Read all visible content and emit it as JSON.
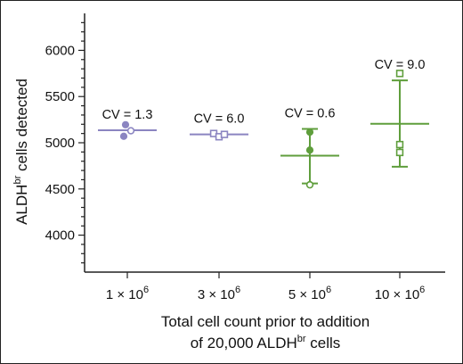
{
  "chart_data": {
    "type": "scatter",
    "title": "",
    "xlabel_line1": "Total cell count prior to addition",
    "xlabel_line2_pre": "of 20,000 ALDH",
    "xlabel_line2_sup": "br",
    "xlabel_line2_post": " cells",
    "ylabel_pre": "ALDH",
    "ylabel_sup": "br",
    "ylabel_post": " cells detected",
    "ylim": [
      3600,
      6400
    ],
    "yticks": [
      4000,
      4500,
      5000,
      5500,
      6000
    ],
    "ytick_labels": [
      "4000",
      "4500",
      "5000",
      "5500",
      "6000"
    ],
    "grid": false,
    "categories": [
      {
        "base": "1 × 10",
        "exp": "6"
      },
      {
        "base": "3 × 10",
        "exp": "6"
      },
      {
        "base": "5 × 10",
        "exp": "6"
      },
      {
        "base": "10 × 10",
        "exp": "6"
      }
    ],
    "groups": [
      {
        "cv_label": "CV = 1.3",
        "color": "#8b85c1",
        "mean": 5135,
        "sd_low": 5135,
        "sd_high": 5135,
        "points": [
          {
            "y": 5195,
            "marker": "circle",
            "dx": -2
          },
          {
            "y": 5070,
            "marker": "circle",
            "dx": -4
          },
          {
            "y": 5130,
            "marker": "circle-open",
            "dx": 4
          }
        ]
      },
      {
        "cv_label": "CV = 6.0",
        "color": "#8b85c1",
        "mean": 5090,
        "sd_low": 5090,
        "sd_high": 5090,
        "points": [
          {
            "y": 5100,
            "marker": "square-open",
            "dx": -6
          },
          {
            "y": 5065,
            "marker": "square-open",
            "dx": 0
          },
          {
            "y": 5090,
            "marker": "square-open",
            "dx": 6
          }
        ]
      },
      {
        "cv_label": "CV = 0.6",
        "color": "#5f9e3c",
        "mean": 4860,
        "sd_low": 4560,
        "sd_high": 5150,
        "points": [
          {
            "y": 5115,
            "marker": "circle",
            "dx": 0
          },
          {
            "y": 4920,
            "marker": "circle",
            "dx": 0
          },
          {
            "y": 4545,
            "marker": "circle-open",
            "dx": 0
          }
        ]
      },
      {
        "cv_label": "CV = 9.0",
        "color": "#5f9e3c",
        "mean": 5205,
        "sd_low": 4740,
        "sd_high": 5675,
        "points": [
          {
            "y": 5750,
            "marker": "square-open",
            "dx": 0
          },
          {
            "y": 4980,
            "marker": "square-open",
            "dx": 0
          },
          {
            "y": 4895,
            "marker": "square-open",
            "dx": 0
          }
        ]
      }
    ]
  }
}
